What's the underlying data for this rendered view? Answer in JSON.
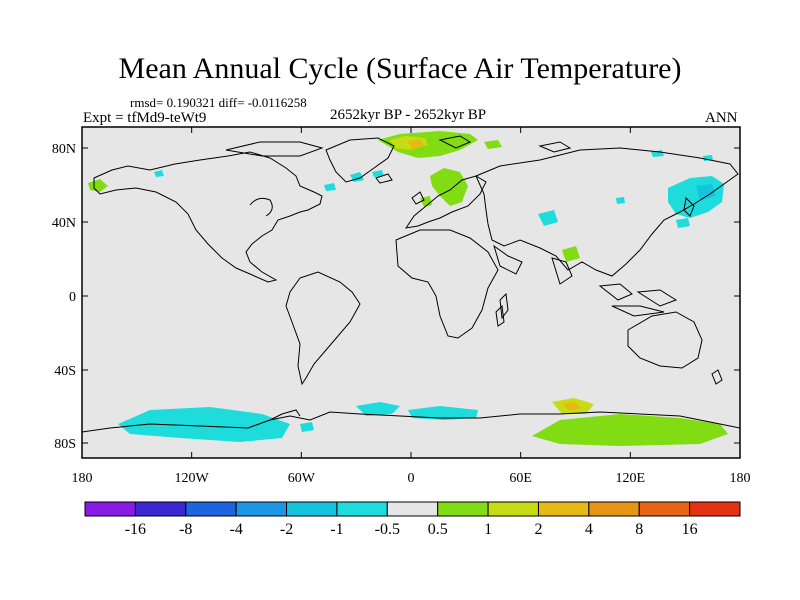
{
  "title": "Mean Annual Cycle (Surface Air Temperature)",
  "stats": "rmsd= 0.190321 diff= -0.0116258",
  "period": "2652kyr BP - 2652kyr BP",
  "experiment": "Expt = tfMd9-teWt9",
  "season": "ANN",
  "map": {
    "background_color": "#e6e6e6",
    "lat_ticks": [
      "80N",
      "40N",
      "0",
      "40S",
      "80S"
    ],
    "lon_ticks": [
      "180",
      "120W",
      "60W",
      "0",
      "60E",
      "120E",
      "180"
    ]
  },
  "colorbar": {
    "labels": [
      "-16",
      "-8",
      "-4",
      "-2",
      "-1",
      "-0.5",
      "0.5",
      "1",
      "2",
      "4",
      "8",
      "16"
    ],
    "colors": [
      "#8a1ae6",
      "#3c28d2",
      "#1e64e1",
      "#1e96e6",
      "#14c3dc",
      "#1edcdc",
      "#e6e6e6",
      "#82dc14",
      "#c8dc14",
      "#e6b914",
      "#e69614",
      "#e66414",
      "#e63214"
    ]
  }
}
